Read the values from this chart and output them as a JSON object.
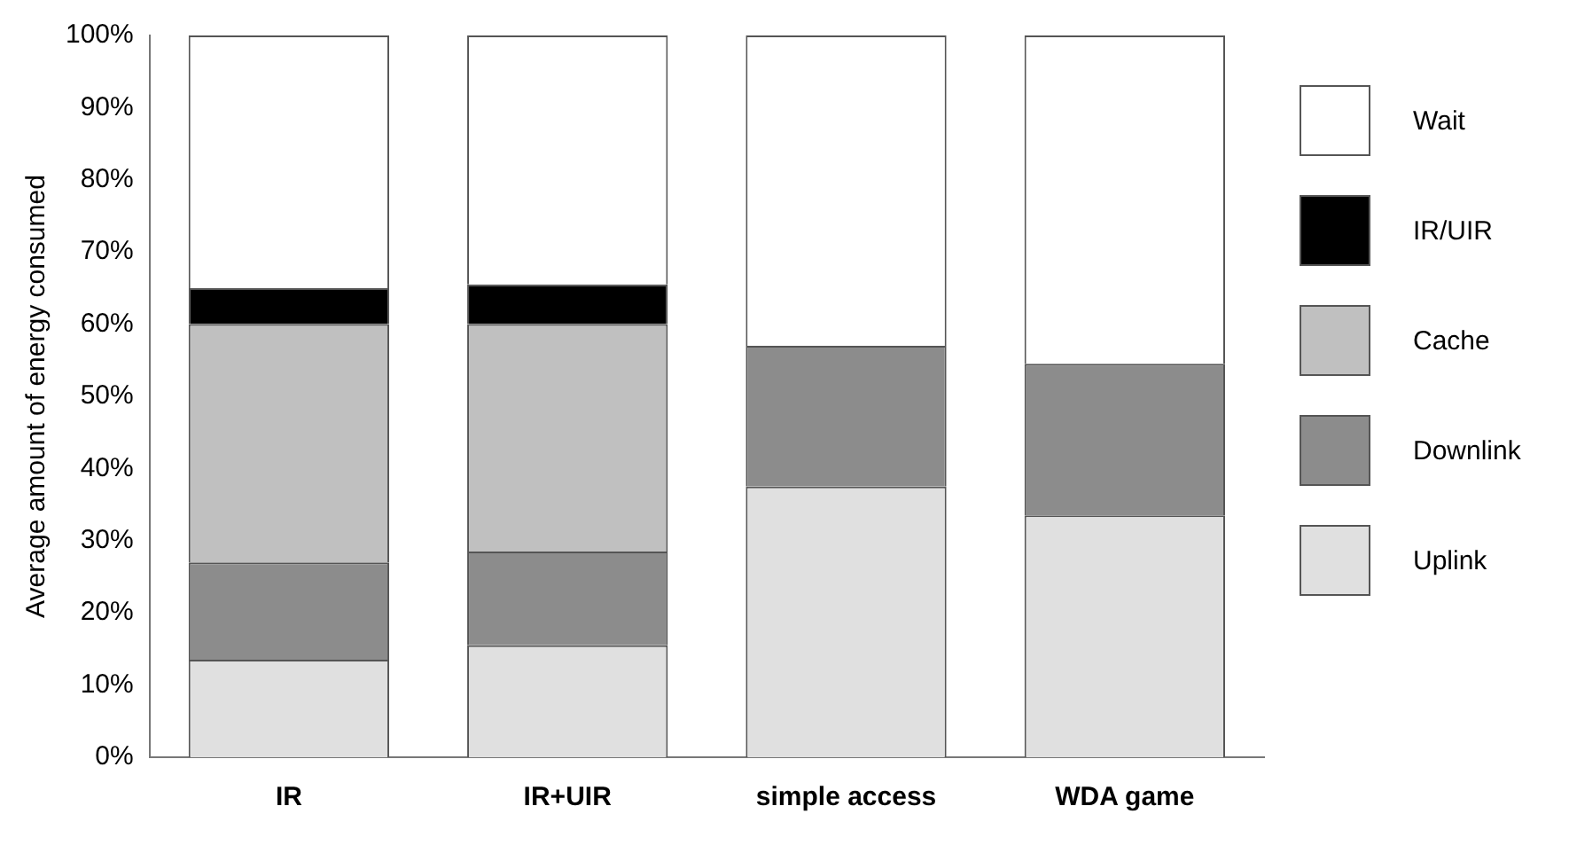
{
  "chart_data": {
    "type": "bar",
    "stacked": true,
    "ylabel": "Average amount of energy consumed",
    "categories": [
      "IR",
      "IR+UIR",
      "simple access",
      "WDA game"
    ],
    "series": [
      {
        "name": "Uplink",
        "color": "#e0e0e0",
        "values": [
          13.5,
          15.5,
          37.5,
          33.5
        ]
      },
      {
        "name": "Downlink",
        "color": "#8c8c8c",
        "values": [
          13.5,
          13,
          19.5,
          21
        ]
      },
      {
        "name": "Cache",
        "color": "#c0c0c0",
        "values": [
          33,
          31.5,
          null,
          null
        ]
      },
      {
        "name": "IR/UIR",
        "color": "#000000",
        "values": [
          5,
          5.5,
          null,
          null
        ]
      },
      {
        "name": "Wait",
        "color": "#ffffff",
        "values": [
          35,
          34.5,
          43,
          45.5
        ]
      }
    ],
    "ylim": [
      0,
      100
    ],
    "yticks": [
      {
        "value": 0,
        "label": "0%"
      },
      {
        "value": 10,
        "label": "10%"
      },
      {
        "value": 20,
        "label": "20%"
      },
      {
        "value": 30,
        "label": "30%"
      },
      {
        "value": 40,
        "label": "40%"
      },
      {
        "value": 50,
        "label": "50%"
      },
      {
        "value": 60,
        "label": "60%"
      },
      {
        "value": 70,
        "label": "70%"
      },
      {
        "value": 80,
        "label": "80%"
      },
      {
        "value": 90,
        "label": "90%"
      },
      {
        "value": 100,
        "label": "100%"
      }
    ],
    "grid": false,
    "legend": "right"
  }
}
